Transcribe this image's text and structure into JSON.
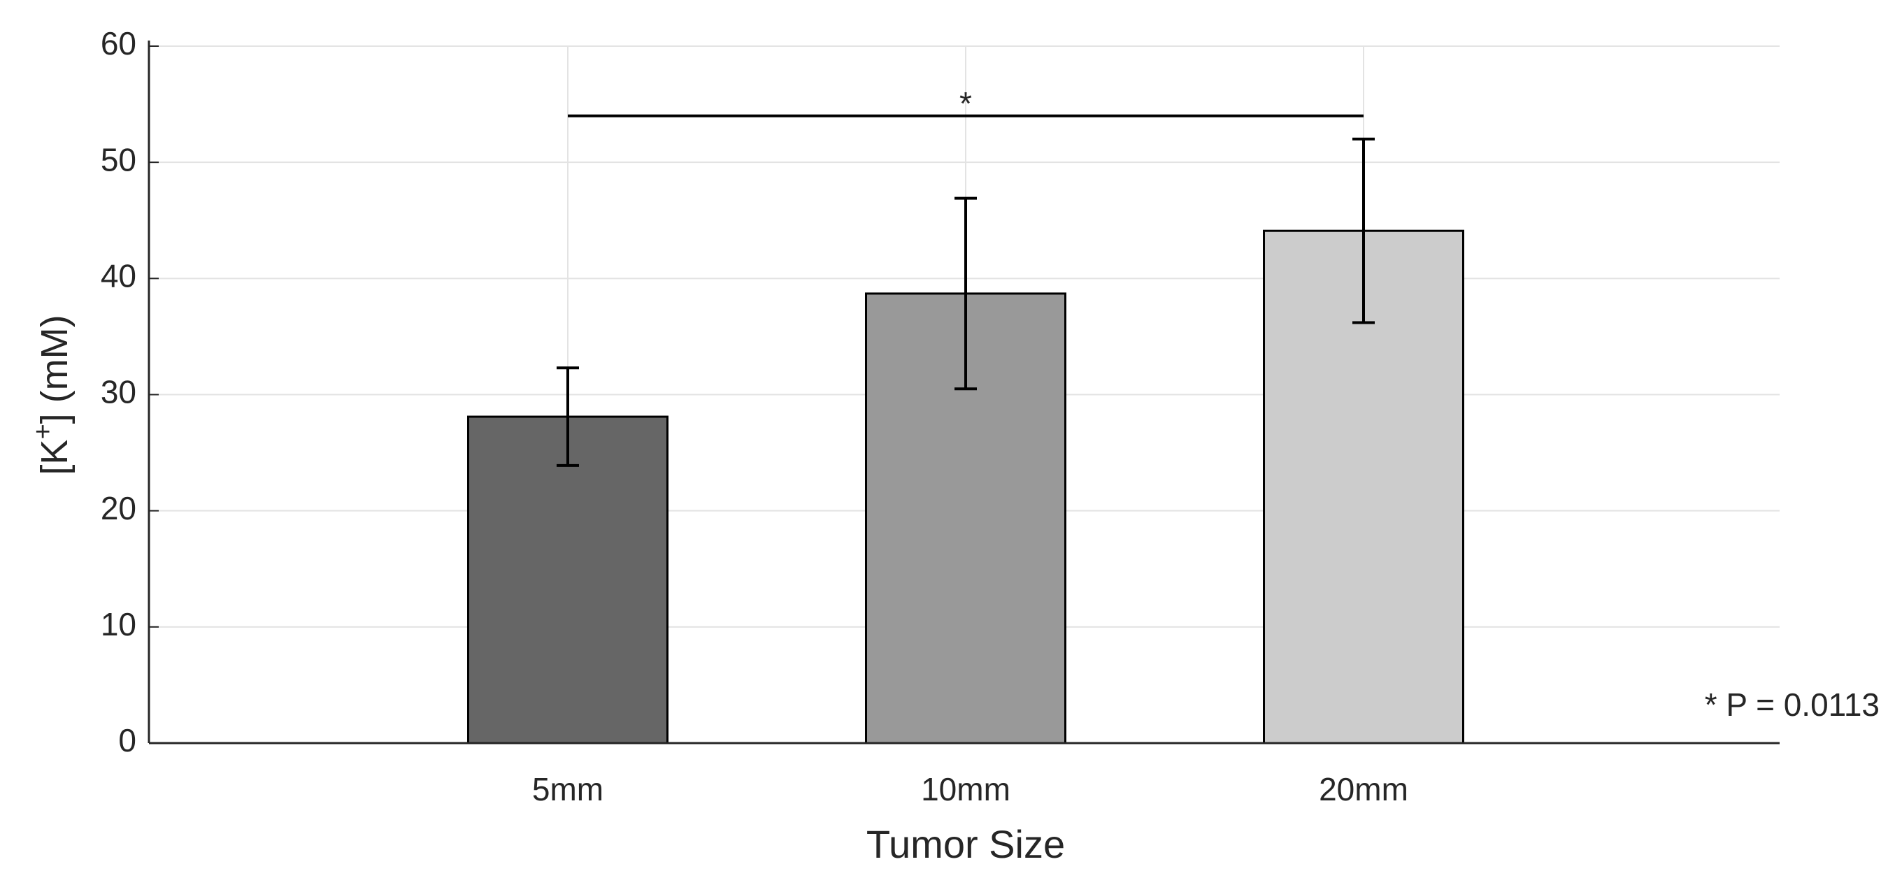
{
  "chart_data": {
    "type": "bar",
    "ylabel": [
      "[K",
      "+",
      "] (mM)"
    ],
    "xlabel": "Tumor Size",
    "categories": [
      "5mm",
      "10mm",
      "20mm"
    ],
    "values": [
      28.1,
      38.7,
      44.1
    ],
    "errors": [
      4.2,
      8.2,
      7.9
    ],
    "colors": [
      "#666666",
      "#999999",
      "#cccccc"
    ],
    "ylim": [
      0,
      60
    ],
    "yticks": [
      0,
      10,
      20,
      30,
      40,
      50,
      60
    ],
    "grid": true,
    "significance": {
      "from": 0,
      "to": 2,
      "y": 54,
      "label": "*"
    },
    "annotation": "* P = 0.0113"
  }
}
